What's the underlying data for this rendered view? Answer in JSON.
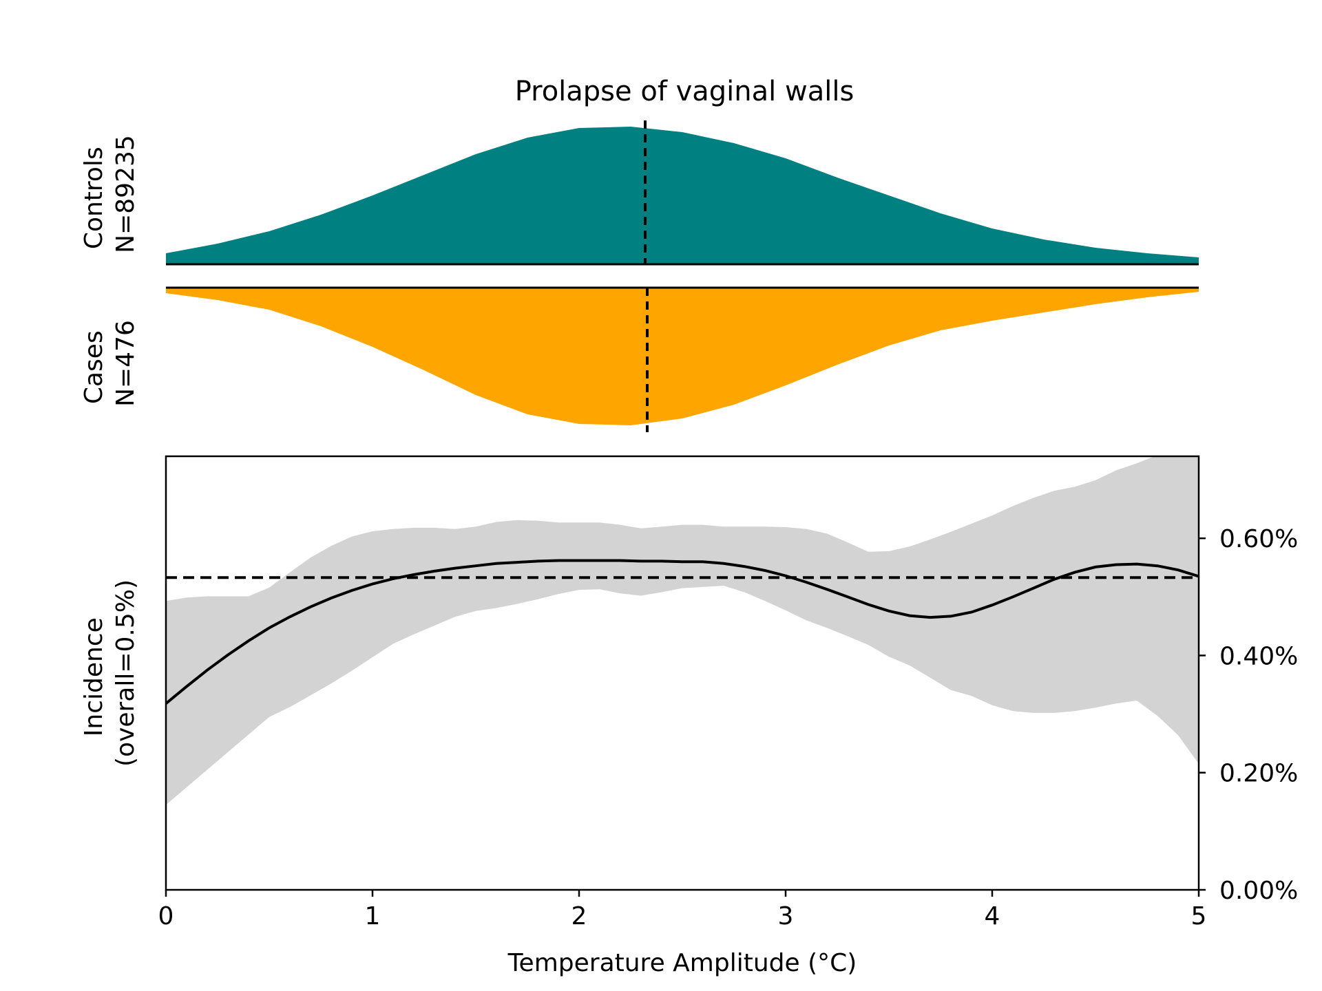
{
  "chart_data": [
    {
      "type": "area",
      "panel": "controls-density",
      "title": "Prolapse of vaginal walls",
      "ylabel_lines": [
        "Controls",
        "N=89235"
      ],
      "color": "#008080",
      "x": [
        0,
        0.25,
        0.5,
        0.75,
        1.0,
        1.25,
        1.5,
        1.75,
        2.0,
        2.25,
        2.5,
        2.75,
        3.0,
        3.25,
        3.5,
        3.75,
        4.0,
        4.25,
        4.5,
        4.75,
        5.0
      ],
      "y": [
        0.08,
        0.15,
        0.24,
        0.36,
        0.5,
        0.65,
        0.8,
        0.92,
        0.99,
        1.0,
        0.96,
        0.88,
        0.77,
        0.63,
        0.5,
        0.37,
        0.26,
        0.18,
        0.12,
        0.08,
        0.05
      ],
      "median_x": 2.32
    },
    {
      "type": "area",
      "panel": "cases-density",
      "ylabel_lines": [
        "Cases",
        "N=476"
      ],
      "color": "#FFA500",
      "x": [
        0,
        0.25,
        0.5,
        0.75,
        1.0,
        1.25,
        1.5,
        1.75,
        2.0,
        2.25,
        2.5,
        2.75,
        3.0,
        3.25,
        3.5,
        3.75,
        4.0,
        4.25,
        4.5,
        4.75,
        5.0
      ],
      "y": [
        0.04,
        0.09,
        0.16,
        0.28,
        0.43,
        0.6,
        0.78,
        0.92,
        0.99,
        1.0,
        0.95,
        0.85,
        0.71,
        0.56,
        0.42,
        0.31,
        0.24,
        0.18,
        0.12,
        0.07,
        0.03
      ],
      "median_x": 2.33
    },
    {
      "type": "line",
      "panel": "incidence",
      "xlabel": "Temperature Amplitude (°C)",
      "ylabel_lines": [
        "Incidence",
        "(overall=0.5%)"
      ],
      "xlim": [
        0,
        5
      ],
      "ylim": [
        0,
        0.0074
      ],
      "x_ticks": [
        0,
        1,
        2,
        3,
        4,
        5
      ],
      "x_tick_labels": [
        "0",
        "1",
        "2",
        "3",
        "4",
        "5"
      ],
      "y_ticks": [
        0,
        0.002,
        0.004,
        0.006
      ],
      "y_tick_labels": [
        "0.00%",
        "0.20%",
        "0.40%",
        "0.60%"
      ],
      "overall_rate": 0.00533,
      "ci_color": "#d3d3d3",
      "x": [
        0,
        0.1,
        0.2,
        0.3,
        0.4,
        0.5,
        0.6,
        0.7,
        0.8,
        0.9,
        1.0,
        1.1,
        1.2,
        1.3,
        1.4,
        1.5,
        1.6,
        1.7,
        1.8,
        1.9,
        2.0,
        2.1,
        2.2,
        2.3,
        2.4,
        2.5,
        2.6,
        2.7,
        2.8,
        2.9,
        3.0,
        3.1,
        3.2,
        3.3,
        3.4,
        3.5,
        3.6,
        3.7,
        3.8,
        3.9,
        4.0,
        4.1,
        4.2,
        4.3,
        4.4,
        4.5,
        4.6,
        4.7,
        4.8,
        4.9,
        5.0
      ],
      "incidence": [
        0.00318,
        0.00347,
        0.00375,
        0.00401,
        0.00425,
        0.00447,
        0.00466,
        0.00483,
        0.00498,
        0.00511,
        0.00522,
        0.00531,
        0.00538,
        0.00544,
        0.00549,
        0.00553,
        0.00557,
        0.00559,
        0.00561,
        0.00562,
        0.00562,
        0.00562,
        0.00562,
        0.00561,
        0.00561,
        0.0056,
        0.0056,
        0.00557,
        0.00552,
        0.00545,
        0.00536,
        0.00525,
        0.00513,
        0.005,
        0.00487,
        0.00476,
        0.00468,
        0.00465,
        0.00467,
        0.00474,
        0.00486,
        0.005,
        0.00515,
        0.0053,
        0.00542,
        0.00551,
        0.00555,
        0.00556,
        0.00553,
        0.00546,
        0.00535
      ],
      "ci_lower": [
        0.00145,
        0.00175,
        0.00205,
        0.00235,
        0.00265,
        0.00295,
        0.00312,
        0.00332,
        0.00352,
        0.00374,
        0.00397,
        0.0042,
        0.00436,
        0.00451,
        0.00466,
        0.00476,
        0.00481,
        0.00488,
        0.00496,
        0.00505,
        0.00512,
        0.00513,
        0.00506,
        0.00502,
        0.00508,
        0.00515,
        0.00517,
        0.00519,
        0.00508,
        0.00493,
        0.00477,
        0.0046,
        0.00447,
        0.00433,
        0.00418,
        0.00398,
        0.00383,
        0.00362,
        0.00341,
        0.00331,
        0.00315,
        0.00305,
        0.00302,
        0.00302,
        0.00305,
        0.00311,
        0.00318,
        0.00323,
        0.00297,
        0.00264,
        0.00215
      ],
      "ci_upper": [
        0.00493,
        0.00499,
        0.00501,
        0.00501,
        0.00501,
        0.00516,
        0.00542,
        0.00567,
        0.00587,
        0.00603,
        0.00612,
        0.00616,
        0.00618,
        0.00618,
        0.00616,
        0.0062,
        0.00628,
        0.00631,
        0.0063,
        0.00627,
        0.00627,
        0.00627,
        0.00623,
        0.00617,
        0.0062,
        0.00623,
        0.00623,
        0.0062,
        0.0062,
        0.0062,
        0.00619,
        0.00616,
        0.00608,
        0.00593,
        0.00577,
        0.00578,
        0.00586,
        0.00598,
        0.00611,
        0.00625,
        0.00639,
        0.00655,
        0.00669,
        0.00681,
        0.00688,
        0.00699,
        0.00716,
        0.00728,
        0.00742,
        0.0076,
        0.0078
      ]
    }
  ]
}
